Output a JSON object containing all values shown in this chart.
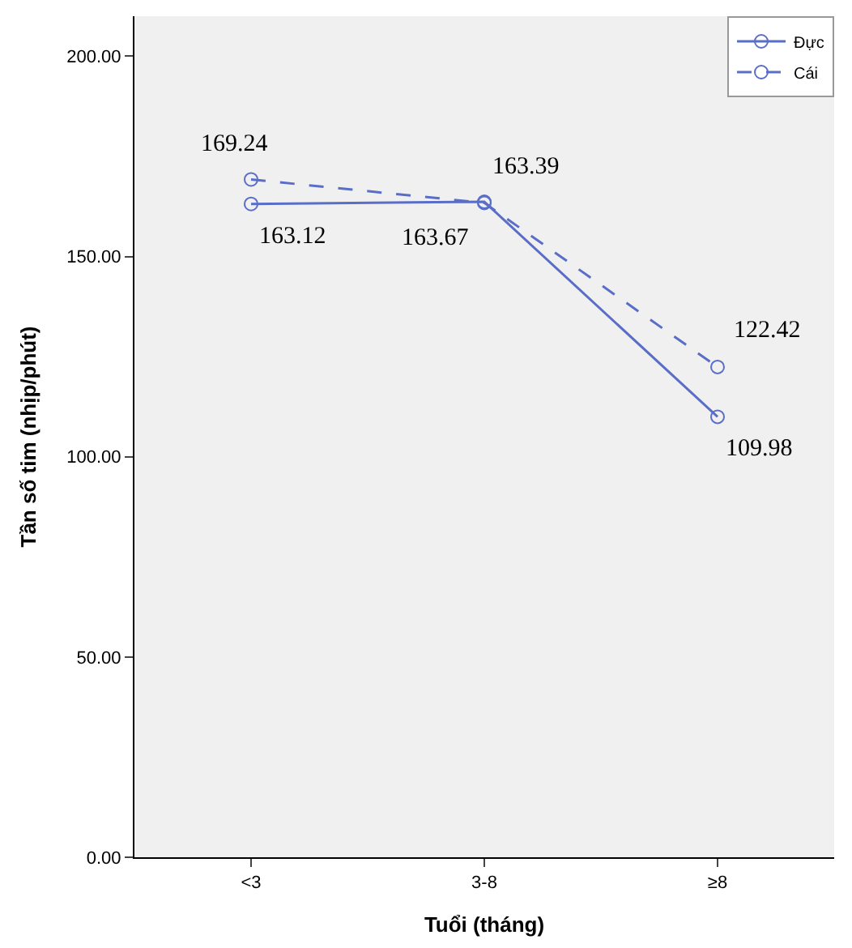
{
  "chart_data": {
    "type": "line",
    "xlabel": "Tuổi (tháng)",
    "ylabel": "Tần số tim (nhịp/phút)",
    "categories": [
      "<3",
      "3-8",
      "≥8"
    ],
    "series": [
      {
        "name": "Đực",
        "color": "#5a6ec8",
        "line_style": "solid",
        "values": [
          163.12,
          163.67,
          109.98
        ]
      },
      {
        "name": "Cái",
        "color": "#5a6ec8",
        "line_style": "dashed",
        "values": [
          169.24,
          163.39,
          122.42
        ]
      }
    ],
    "ylim": [
      0,
      210
    ],
    "yticks": [
      {
        "value": 0,
        "label": "0.00"
      },
      {
        "value": 50,
        "label": "50.00"
      },
      {
        "value": 100,
        "label": "100.00"
      },
      {
        "value": 150,
        "label": "150.00"
      },
      {
        "value": 200,
        "label": "200.00"
      }
    ],
    "grid": false,
    "legend": "top right",
    "marker": "circle",
    "data_labels": true
  }
}
